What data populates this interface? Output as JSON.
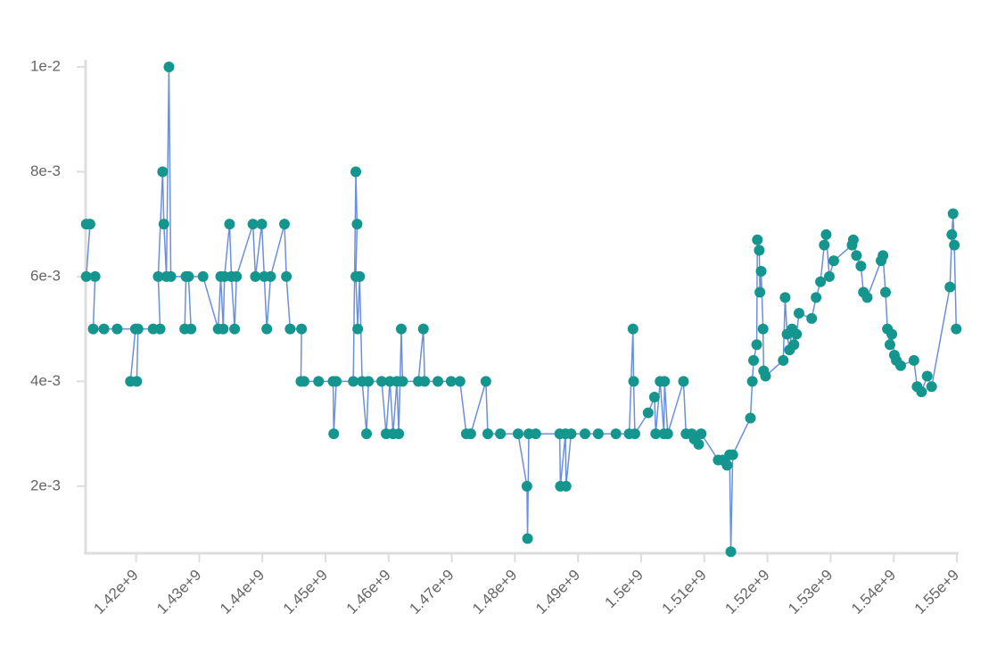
{
  "chart_data": {
    "type": "line",
    "x": [
      1412100000,
      1412700000,
      1412100000,
      1413500000,
      1413200000,
      1414900000,
      1417000000,
      1419900000,
      1419100000,
      1420100000,
      1420300000,
      1422700000,
      1423800000,
      1423500000,
      1424200000,
      1424400000,
      1424800000,
      1425200000,
      1425500000,
      1427900000,
      1427700000,
      1428700000,
      1428300000,
      1430600000,
      1433000000,
      1433400000,
      1433800000,
      1434000000,
      1434800000,
      1435100000,
      1435600000,
      1435900000,
      1438500000,
      1438900000,
      1439900000,
      1440300000,
      1440700000,
      1441300000,
      1443500000,
      1443800000,
      1444400000,
      1446200000,
      1446100000,
      1446600000,
      1448900000,
      1451200000,
      1451300000,
      1451700000,
      1454400000,
      1454800000,
      1455000000,
      1454800000,
      1455100000,
      1455400000,
      1455800000,
      1456500000,
      1456800000,
      1458900000,
      1459600000,
      1460200000,
      1460700000,
      1461300000,
      1461600000,
      1462000000,
      1462200000,
      1464700000,
      1465500000,
      1465700000,
      1467800000,
      1469900000,
      1471300000,
      1472300000,
      1473000000,
      1475400000,
      1475700000,
      1477700000,
      1480500000,
      1481900000,
      1482000000,
      1482200000,
      1483300000,
      1487100000,
      1487200000,
      1488000000,
      1488100000,
      1488900000,
      1491100000,
      1493200000,
      1496000000,
      1498100000,
      1498700000,
      1498800000,
      1499000000,
      1501100000,
      1502100000,
      1502300000,
      1503000000,
      1503600000,
      1503700000,
      1504200000,
      1506700000,
      1507100000,
      1508000000,
      1508400000,
      1509100000,
      1509500000,
      1512200000,
      1512900000,
      1513600000,
      1514000000,
      1514200000,
      1514500000,
      1517300000,
      1517600000,
      1517800000,
      1518300000,
      1518400000,
      1518700000,
      1518800000,
      1519000000,
      1519300000,
      1519400000,
      1519700000,
      1522500000,
      1522800000,
      1523100000,
      1523500000,
      1523900000,
      1524200000,
      1524600000,
      1525000000,
      1527000000,
      1527700000,
      1528400000,
      1529000000,
      1529300000,
      1529800000,
      1530500000,
      1533400000,
      1533600000,
      1534100000,
      1534800000,
      1535200000,
      1535800000,
      1538000000,
      1538300000,
      1538700000,
      1539000000,
      1539400000,
      1539700000,
      1540100000,
      1540400000,
      1541100000,
      1543200000,
      1543700000,
      1544400000,
      1545300000,
      1546000000,
      1548900000,
      1549200000,
      1549400000,
      1549600000,
      1549900000
    ],
    "series": [
      {
        "color": "#6b8fe0",
        "marker_color": "#14968f",
        "values": [
          0.007,
          0.007,
          0.006,
          0.006,
          0.005,
          0.005,
          0.005,
          0.005,
          0.004,
          0.004,
          0.005,
          0.005,
          0.005,
          0.006,
          0.008,
          0.007,
          0.006,
          0.01,
          0.006,
          0.006,
          0.005,
          0.005,
          0.006,
          0.006,
          0.005,
          0.006,
          0.005,
          0.006,
          0.007,
          0.006,
          0.005,
          0.006,
          0.007,
          0.006,
          0.007,
          0.006,
          0.005,
          0.006,
          0.007,
          0.006,
          0.005,
          0.005,
          0.004,
          0.004,
          0.004,
          0.004,
          0.003,
          0.004,
          0.004,
          0.008,
          0.007,
          0.006,
          0.005,
          0.006,
          0.004,
          0.003,
          0.004,
          0.004,
          0.003,
          0.004,
          0.003,
          0.004,
          0.003,
          0.005,
          0.004,
          0.004,
          0.005,
          0.004,
          0.004,
          0.004,
          0.004,
          0.003,
          0.003,
          0.004,
          0.003,
          0.003,
          0.003,
          0.002,
          0.001,
          0.003,
          0.003,
          0.003,
          0.002,
          0.003,
          0.002,
          0.003,
          0.003,
          0.003,
          0.003,
          0.003,
          0.005,
          0.004,
          0.003,
          0.0034,
          0.0037,
          0.003,
          0.004,
          0.003,
          0.004,
          0.003,
          0.004,
          0.003,
          0.003,
          0.0029,
          0.0028,
          0.003,
          0.0025,
          0.0025,
          0.0024,
          0.0026,
          0.00075,
          0.0026,
          0.0033,
          0.004,
          0.0044,
          0.0047,
          0.0067,
          0.0065,
          0.0057,
          0.0061,
          0.005,
          0.0042,
          0.0041,
          0.0044,
          0.0056,
          0.0049,
          0.0046,
          0.005,
          0.0047,
          0.0049,
          0.0053,
          0.0052,
          0.0056,
          0.0059,
          0.0066,
          0.0068,
          0.006,
          0.0063,
          0.0066,
          0.0067,
          0.0064,
          0.0062,
          0.0057,
          0.0056,
          0.0063,
          0.0064,
          0.0057,
          0.005,
          0.0047,
          0.0049,
          0.0045,
          0.0044,
          0.0043,
          0.0044,
          0.0039,
          0.0038,
          0.0041,
          0.0039,
          0.0058,
          0.0068,
          0.0072,
          0.0066,
          0.005
        ]
      }
    ],
    "xlim": [
      1412000000,
      1550000000
    ],
    "ylim": [
      0.00072,
      0.01
    ],
    "xticks": [
      {
        "value": 1420000000,
        "label": "1.42e+9"
      },
      {
        "value": 1430000000,
        "label": "1.43e+9"
      },
      {
        "value": 1440000000,
        "label": "1.44e+9"
      },
      {
        "value": 1450000000,
        "label": "1.45e+9"
      },
      {
        "value": 1460000000,
        "label": "1.46e+9"
      },
      {
        "value": 1470000000,
        "label": "1.47e+9"
      },
      {
        "value": 1480000000,
        "label": "1.48e+9"
      },
      {
        "value": 1490000000,
        "label": "1.49e+9"
      },
      {
        "value": 1500000000,
        "label": "1.5e+9"
      },
      {
        "value": 1510000000,
        "label": "1.51e+9"
      },
      {
        "value": 1520000000,
        "label": "1.52e+9"
      },
      {
        "value": 1530000000,
        "label": "1.53e+9"
      },
      {
        "value": 1540000000,
        "label": "1.54e+9"
      },
      {
        "value": 1550000000,
        "label": "1.55e+9"
      }
    ],
    "yticks": [
      {
        "value": 0.002,
        "label": "2e-3"
      },
      {
        "value": 0.004,
        "label": "4e-3"
      },
      {
        "value": 0.006,
        "label": "6e-3"
      },
      {
        "value": 0.008,
        "label": "8e-3"
      },
      {
        "value": 0.01,
        "label": "1e-2"
      }
    ]
  }
}
